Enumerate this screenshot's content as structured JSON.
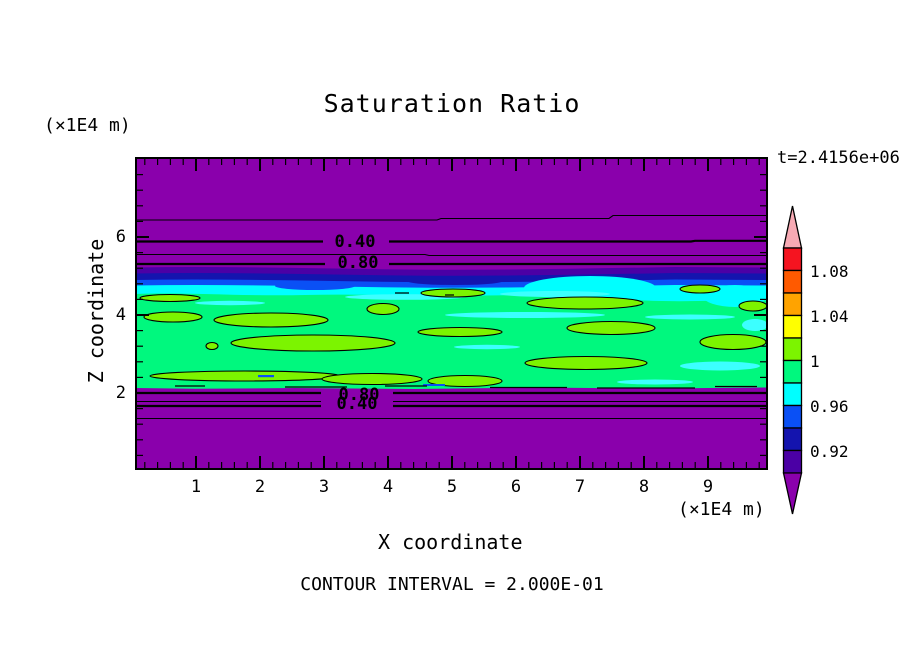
{
  "title": "Saturation Ratio",
  "annotations": {
    "time_label": "t=2.4156e+06",
    "footer": "CONTOUR INTERVAL = 2.000E-01",
    "y_unit_top_left": "(×1E4 m)",
    "x_unit_bottom_right": "(×1E4 m)"
  },
  "x_axis": {
    "label": "X coordinate",
    "ticks": [
      "1",
      "2",
      "3",
      "4",
      "5",
      "6",
      "7",
      "8",
      "9"
    ]
  },
  "y_axis": {
    "label": "Z coordinate",
    "ticks": [
      "6",
      "4",
      "2"
    ]
  },
  "contour_labels": {
    "upper_040": "0.40",
    "upper_080": "0.80",
    "lower_080": "0.80",
    "lower_040": "0.40"
  },
  "colorbar": {
    "labels": [
      "1.08",
      "1.04",
      "1",
      "0.96",
      "0.92"
    ],
    "segments_top_to_bottom": [
      "red",
      "orangered",
      "orange",
      "yellow",
      "chartreuse",
      "green",
      "cyan",
      "blue",
      "navy",
      "indigo"
    ],
    "arrow_top": "pink",
    "arrow_bottom": "purple"
  },
  "palette": {
    "purple": "#8A00AC",
    "indigo": "#4B00A5",
    "navy": "#1414AE",
    "blue": "#0A50F5",
    "cyan": "#00FFFF",
    "cyan_light": "#3CFFFF",
    "green": "#00F87E",
    "chartreuse": "#7CF400",
    "yellow": "#FFFF00",
    "orange": "#FFA300",
    "orangered": "#FF5A00",
    "red": "#F51420",
    "pink": "#F7AAB4",
    "frame": "#000000"
  },
  "chart_data": {
    "type": "heatmap",
    "title": "Saturation Ratio",
    "xlabel": "X coordinate",
    "ylabel": "Z coordinate",
    "x_unit": "(×1E4 m)",
    "y_unit": "(×1E4 m)",
    "x_range": [
      0,
      10
    ],
    "y_range": [
      0,
      8
    ],
    "x_ticks": [
      1,
      2,
      3,
      4,
      5,
      6,
      7,
      8,
      9
    ],
    "y_ticks": [
      2,
      4,
      6
    ],
    "time_annotation": "t=2.4156e+06",
    "contour_interval": 0.2,
    "colorbar": {
      "tick_values": [
        1.08,
        1.04,
        1,
        0.96,
        0.92
      ],
      "cell_step": 0.02,
      "range_of_cells": [
        0.9,
        1.1
      ],
      "over_color": "pink (saturation > 1.10)",
      "under_color": "purple (saturation < 0.90)",
      "legend_position": "right"
    },
    "labeled_contours": [
      {
        "value": 0.4,
        "z_location": 5.9,
        "x_label_position": 3.45
      },
      {
        "value": 0.8,
        "z_location": 5.3,
        "x_label_position": 3.45
      },
      {
        "value": 0.8,
        "z_location": 2.0,
        "x_label_position": 3.45
      },
      {
        "value": 0.4,
        "z_location": 1.65,
        "x_label_position": 3.45
      }
    ],
    "unlabeled_contours": [
      {
        "value": 0.2,
        "z_location": 6.45
      },
      {
        "value": 0.6,
        "z_location": 5.55
      },
      {
        "value": 0.6,
        "z_location": 1.8
      },
      {
        "value": 0.2,
        "z_location": 1.3
      }
    ],
    "field_regions": [
      {
        "z_band": "5.3 to 8.0",
        "saturation": "below 0.9, purple fill; decreasing upward with line contours 0.8, 0.6, 0.4, 0.2 at z ≈ 5.3, 5.55, 5.9, 6.45"
      },
      {
        "z_band": "4.6 to 5.3",
        "saturation": "0.90–0.96; thin stratified horizontal bands: indigo, navy, blue, cyan; cyan thickens near x ≈ 4–6 and x ≈ 9–10"
      },
      {
        "z_band": "2.0 to 4.6",
        "saturation": "0.96–1.02; green field with many elongated chartreuse patches just above 1.0 (black outlined) and cyan streaks near 0.95"
      },
      {
        "z_band": "0 to 2.0",
        "saturation": "below 0.9, purple fill; line contours 0.8, 0.6, 0.4, 0.2 at z ≈ 2.0, 1.8, 1.65, 1.3"
      }
    ],
    "grid": "off",
    "ticks_direction": "inward on all four sides, minor ticks x every 0.2, z every 0.4"
  }
}
